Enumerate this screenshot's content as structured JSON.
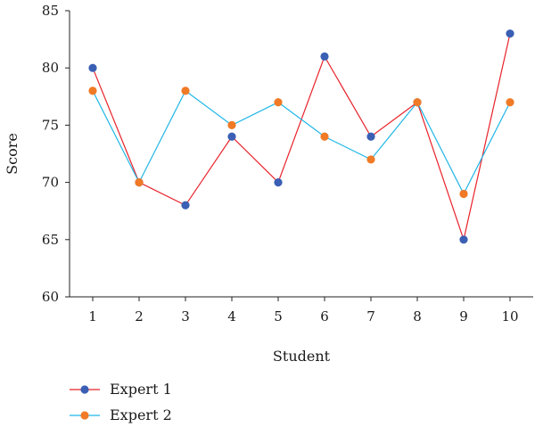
{
  "chart_data": {
    "type": "line",
    "xlabel": "Student",
    "ylabel": "Score",
    "x": [
      1,
      2,
      3,
      4,
      5,
      6,
      7,
      8,
      9,
      10
    ],
    "ylim": [
      60,
      85
    ],
    "yticks": [
      60,
      65,
      70,
      75,
      80,
      85
    ],
    "grid": false,
    "legend_position": "bottom-left",
    "series": [
      {
        "name": "Expert 1",
        "values": [
          80,
          70,
          68,
          74,
          70,
          81,
          74,
          77,
          65,
          83
        ],
        "line_color": "#e8212a",
        "marker_color": "#3a5fb4"
      },
      {
        "name": "Expert 2",
        "values": [
          78,
          70,
          78,
          75,
          77,
          74,
          72,
          77,
          69,
          77
        ],
        "line_color": "#1fb6e6",
        "marker_color": "#f07a26"
      }
    ]
  }
}
